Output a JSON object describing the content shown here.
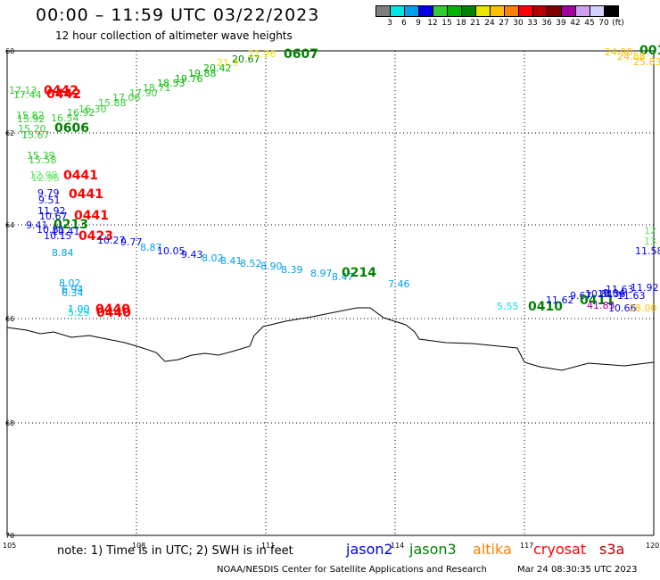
{
  "title": "00:00 – 11:59 UTC 03/22/2023",
  "subtitle": "12 hour collection of altimeter wave heights",
  "colorbar": {
    "labels": [
      "3",
      "6",
      "9",
      "12",
      "15",
      "18",
      "21",
      "24",
      "27",
      "30",
      "33",
      "36",
      "39",
      "42",
      "45",
      "70",
      "(ft)"
    ],
    "colors": [
      "#7f7f7f",
      "#00e6e6",
      "#00a0f0",
      "#0000e6",
      "#33cc33",
      "#00b400",
      "#008200",
      "#e6e600",
      "#ffc000",
      "#ff7f00",
      "#ff0000",
      "#b40000",
      "#7f0000",
      "#a000a0",
      "#d2a0f0",
      "#d2d2ff",
      "#000000"
    ]
  },
  "axes": {
    "lat_ticks": [
      "60",
      "62",
      "64",
      "66",
      "68",
      "70"
    ],
    "lon_ticks": [
      "105",
      "108",
      "111",
      "114",
      "117",
      "120"
    ]
  },
  "swh_labels": [
    {
      "t": "17.13",
      "c": "#33cc33"
    },
    {
      "t": "17.44",
      "c": "#33cc33"
    },
    {
      "t": "0442",
      "c": "#ff0000"
    },
    {
      "t": "0442",
      "c": "#ff0000"
    },
    {
      "t": "15.82",
      "c": "#33cc33"
    },
    {
      "t": "15.92",
      "c": "#33cc33"
    },
    {
      "t": "16.54",
      "c": "#33cc33"
    },
    {
      "t": "16.92",
      "c": "#33cc33"
    },
    {
      "t": "15.20",
      "c": "#33cc33"
    },
    {
      "t": "15.67",
      "c": "#33cc33"
    },
    {
      "t": "0606",
      "c": "#008200"
    },
    {
      "t": "16.30",
      "c": "#33cc33"
    },
    {
      "t": "15.88",
      "c": "#33cc33"
    },
    {
      "t": "17.06",
      "c": "#33cc33"
    },
    {
      "t": "17.90",
      "c": "#33cc33"
    },
    {
      "t": "18.71",
      "c": "#33cc33"
    },
    {
      "t": "18.53",
      "c": "#00b400"
    },
    {
      "t": "19.76",
      "c": "#00b400"
    },
    {
      "t": "19.88",
      "c": "#00b400"
    },
    {
      "t": "20.42",
      "c": "#00b400"
    },
    {
      "t": "21.9",
      "c": "#e6e600"
    },
    {
      "t": "20.67",
      "c": "#008200"
    },
    {
      "t": "21.96",
      "c": "#e6e600"
    },
    {
      "t": "0607",
      "c": "#008200"
    },
    {
      "t": "24.90",
      "c": "#ffc000"
    },
    {
      "t": "001",
      "c": "#008200"
    },
    {
      "t": "24.88",
      "c": "#ffc000"
    },
    {
      "t": "25.83",
      "c": "#ffc000"
    },
    {
      "t": "15.39",
      "c": "#33cc33"
    },
    {
      "t": "15.58",
      "c": "#33cc33"
    },
    {
      "t": "12.98",
      "c": "#66e666"
    },
    {
      "t": "12.96",
      "c": "#66e666"
    },
    {
      "t": "0441",
      "c": "#ff0000"
    },
    {
      "t": "9.79",
      "c": "#0000e6"
    },
    {
      "t": "9.51",
      "c": "#0000e6"
    },
    {
      "t": "0441",
      "c": "#ff0000"
    },
    {
      "t": "11.92",
      "c": "#0000e6"
    },
    {
      "t": "10.67",
      "c": "#0000e6"
    },
    {
      "t": "0441",
      "c": "#ff0000"
    },
    {
      "t": "9.41",
      "c": "#0000e6"
    },
    {
      "t": "0213",
      "c": "#008200"
    },
    {
      "t": "10.81",
      "c": "#0000e6"
    },
    {
      "t": "10.41",
      "c": "#0000e6"
    },
    {
      "t": "10.15",
      "c": "#0000e6"
    },
    {
      "t": "0423",
      "c": "#ff0000"
    },
    {
      "t": "10.27",
      "c": "#0000e6"
    },
    {
      "t": "9.77",
      "c": "#0000e6"
    },
    {
      "t": "8.87",
      "c": "#00a0f0"
    },
    {
      "t": "10.05",
      "c": "#0000e6"
    },
    {
      "t": "9.43",
      "c": "#0000e6"
    },
    {
      "t": "8.02",
      "c": "#00a0f0"
    },
    {
      "t": "8.41",
      "c": "#00a0f0"
    },
    {
      "t": "8.52",
      "c": "#00a0f0"
    },
    {
      "t": "8.90",
      "c": "#00a0f0"
    },
    {
      "t": "8.39",
      "c": "#00a0f0"
    },
    {
      "t": "8.84",
      "c": "#00a0f0"
    },
    {
      "t": "8.97",
      "c": "#00a0f0"
    },
    {
      "t": "8.47",
      "c": "#00a0f0"
    },
    {
      "t": "0214",
      "c": "#008200"
    },
    {
      "t": "7.46",
      "c": "#00a0f0"
    },
    {
      "t": "8.02",
      "c": "#00a0f0"
    },
    {
      "t": "6.94",
      "c": "#00a0f0"
    },
    {
      "t": "6.34",
      "c": "#00a0f0"
    },
    {
      "t": "1.00",
      "c": "#00a0f0"
    },
    {
      "t": "5.29",
      "c": "#00e6e6"
    },
    {
      "t": "0440",
      "c": "#ff0000"
    },
    {
      "t": "0440",
      "c": "#ff0000"
    },
    {
      "t": "5.55",
      "c": "#00e6e6"
    },
    {
      "t": "0410",
      "c": "#008200"
    },
    {
      "t": "11.62",
      "c": "#0000e6"
    },
    {
      "t": "9.67",
      "c": "#0000e6"
    },
    {
      "t": "0411",
      "c": "#008200"
    },
    {
      "t": "10.81",
      "c": "#0000e6"
    },
    {
      "t": "10.36",
      "c": "#0000e6"
    },
    {
      "t": "11.63",
      "c": "#0000e6"
    },
    {
      "t": "11.63",
      "c": "#0000e6"
    },
    {
      "t": "11.92",
      "c": "#0000e6"
    },
    {
      "t": "11.58",
      "c": "#0000e6"
    },
    {
      "t": "12",
      "c": "#66e666"
    },
    {
      "t": "13",
      "c": "#66e666"
    },
    {
      "t": "10.66",
      "c": "#0000e6"
    },
    {
      "t": "9.04",
      "c": "#0000e6"
    },
    {
      "t": "41.85",
      "c": "#a000a0"
    },
    {
      "t": "28.00",
      "c": "#ffc000"
    }
  ],
  "footer": {
    "note": "note: 1) Time is in UTC; 2) SWH is in feet",
    "satellites": [
      {
        "name": "jason2",
        "color": "#0000e6"
      },
      {
        "name": "jason3",
        "color": "#008200"
      },
      {
        "name": "altika",
        "color": "#ff7f00"
      },
      {
        "name": "cryosat",
        "color": "#ff0000"
      },
      {
        "name": "s3a",
        "color": "#b40000"
      }
    ],
    "credit": "NOAA/NESDIS Center for Satellite Applications and Research",
    "timestamp": "Mar 24 08:30:35 UTC 2023"
  }
}
